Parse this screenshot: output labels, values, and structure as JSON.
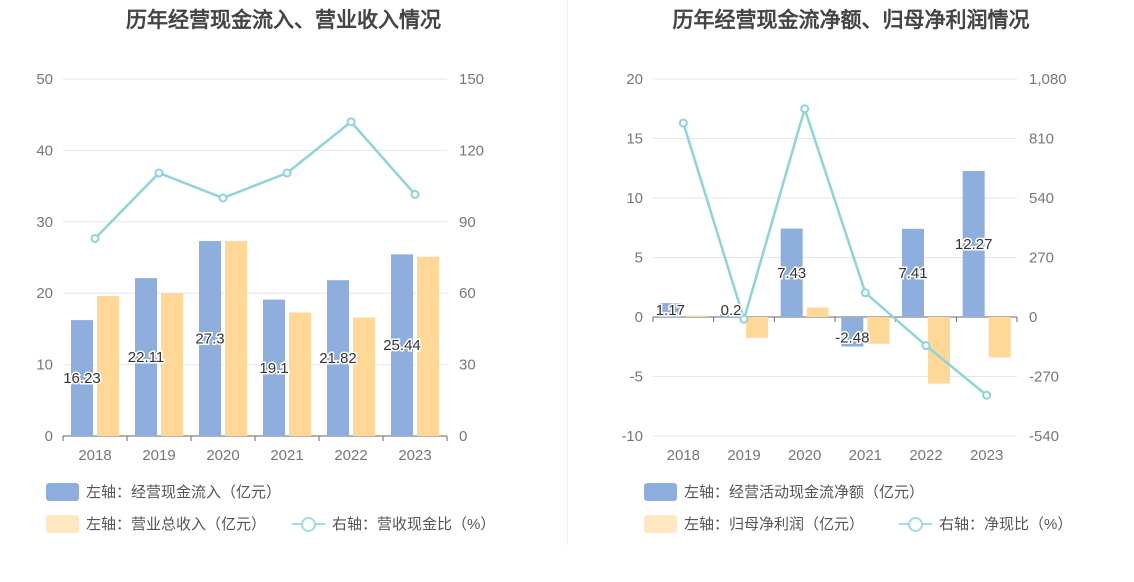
{
  "chart_data": [
    {
      "type": "bar",
      "title": "历年经营现金流入、营业收入情况",
      "categories": [
        "2018",
        "2019",
        "2020",
        "2021",
        "2022",
        "2023"
      ],
      "left_axis": {
        "min": 0,
        "max": 50,
        "ticks": [
          "0",
          "10",
          "20",
          "30",
          "40",
          "50"
        ]
      },
      "right_axis": {
        "min": 0,
        "max": 150,
        "ticks": [
          "0",
          "30",
          "60",
          "90",
          "120",
          "150"
        ]
      },
      "series": [
        {
          "name": "左轴：经营现金流入（亿元）",
          "type": "bar",
          "axis": "left",
          "color": "#8eaedd",
          "values": [
            16.23,
            22.11,
            27.3,
            19.1,
            21.82,
            25.44
          ],
          "labels": [
            "16.23",
            "22.11",
            "27.3",
            "19.1",
            "21.82",
            "25.44"
          ]
        },
        {
          "name": "左轴：营业总收入（亿元）",
          "type": "bar",
          "axis": "left",
          "color": "#ffd898",
          "values": [
            19.6,
            20.0,
            27.3,
            17.3,
            16.6,
            25.1
          ]
        },
        {
          "name": "右轴：营收现金比（%）",
          "type": "line",
          "axis": "right",
          "color": "#8dd5da",
          "values": [
            83,
            110.5,
            100,
            110.5,
            132,
            101.5
          ]
        }
      ]
    },
    {
      "type": "bar",
      "title": "历年经营现金流净额、归母净利润情况",
      "categories": [
        "2018",
        "2019",
        "2020",
        "2021",
        "2022",
        "2023"
      ],
      "left_axis": {
        "min": -10,
        "max": 20,
        "ticks": [
          "-10",
          "-5",
          "0",
          "5",
          "10",
          "15",
          "20"
        ]
      },
      "right_axis": {
        "min": -540,
        "max": 1080,
        "ticks": [
          "-540",
          "-270",
          "0",
          "270",
          "540",
          "810",
          "1,080"
        ]
      },
      "series": [
        {
          "name": "左轴：经营活动现金流净额（亿元）",
          "type": "bar",
          "axis": "left",
          "color": "#8eaedd",
          "values": [
            1.17,
            0.2,
            7.43,
            -2.48,
            7.41,
            12.27
          ],
          "labels": [
            "1.17",
            "0.2",
            "7.43",
            "-2.48",
            "7.41",
            "12.27"
          ]
        },
        {
          "name": "左轴：归母净利润（亿元）",
          "type": "bar",
          "axis": "left",
          "color": "#ffd898",
          "values": [
            0.12,
            -1.75,
            0.8,
            -2.25,
            -5.6,
            -3.4
          ]
        },
        {
          "name": "右轴：净现比（%）",
          "type": "line",
          "axis": "right",
          "color": "#8dd5da",
          "values": [
            880,
            -10,
            945,
            110,
            -130,
            -355
          ]
        }
      ]
    }
  ]
}
